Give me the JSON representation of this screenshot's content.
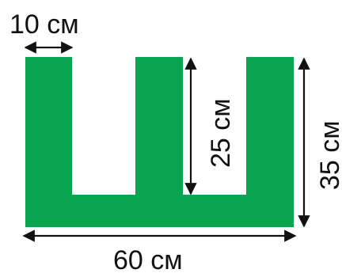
{
  "shape": {
    "letter": "Ш",
    "fill_color": "#0aa550"
  },
  "dimensions": {
    "prong_width": "10 см",
    "inner_height": "25 см",
    "total_height": "35 см",
    "total_width": "60 см"
  }
}
